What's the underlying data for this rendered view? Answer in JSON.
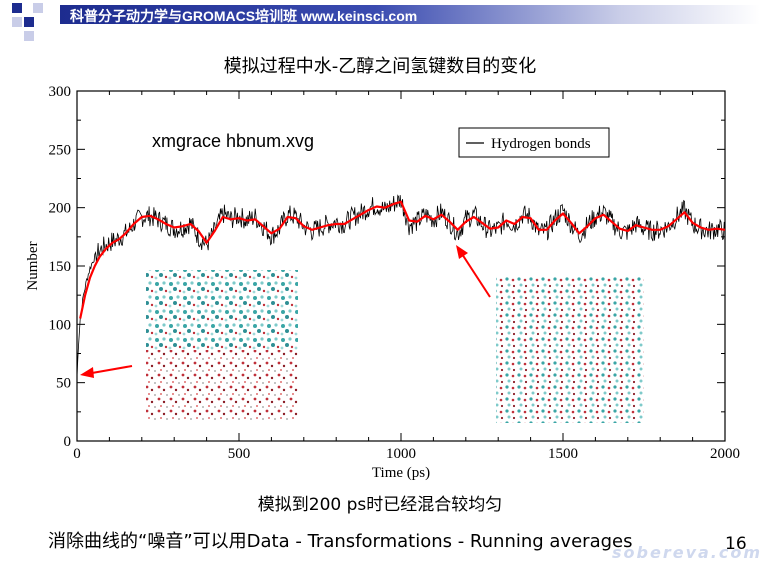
{
  "header": {
    "text": "科普分子动力学与GROMACS培训班 www.keinsci.com",
    "colors": {
      "dark": "#1d2c8f",
      "light": "#c9cde8"
    }
  },
  "slide": {
    "title": "模拟过程中水-乙醇之间氢键数目的变化",
    "command_label": "xmgrace hbnum.xvg",
    "footer_line1": "模拟到200 ps时已经混合较均匀",
    "footer_line2": "消除曲线的“噪音”可以用Data - Transformations - Running averages",
    "slide_number": "16",
    "watermark": "sobereva.com"
  },
  "images": {
    "left_snapshot": "molecular-snapshot-initial",
    "right_snapshot": "molecular-snapshot-mixed"
  },
  "arrows": {
    "color": "#ff0000"
  },
  "chart_data": {
    "type": "line",
    "xlabel": "Time (ps)",
    "ylabel": "Number",
    "xlim": [
      0,
      2000
    ],
    "ylim": [
      0,
      300
    ],
    "xticks": [
      "0",
      "500",
      "1000",
      "1500",
      "2000"
    ],
    "yticks": [
      "0",
      "50",
      "100",
      "150",
      "200",
      "250",
      "300"
    ],
    "legend": {
      "placement": "top-right",
      "entries": [
        "Hydrogen bonds"
      ]
    },
    "grid": false,
    "series": [
      {
        "name": "Hydrogen bonds",
        "color": "#000000",
        "x": [
          0,
          5,
          10,
          20,
          30,
          40,
          50,
          60,
          80,
          100,
          120,
          140,
          160,
          180,
          200,
          225,
          250,
          275,
          300,
          325,
          350,
          375,
          400,
          425,
          450,
          475,
          500,
          525,
          550,
          575,
          600,
          625,
          650,
          675,
          700,
          725,
          750,
          775,
          800,
          825,
          850,
          875,
          900,
          925,
          950,
          975,
          1000,
          1025,
          1050,
          1075,
          1100,
          1125,
          1150,
          1175,
          1200,
          1225,
          1250,
          1275,
          1300,
          1325,
          1350,
          1375,
          1400,
          1425,
          1450,
          1475,
          1500,
          1525,
          1550,
          1575,
          1600,
          1625,
          1650,
          1675,
          1700,
          1725,
          1750,
          1775,
          1800,
          1825,
          1850,
          1875,
          1900,
          1925,
          1950,
          1975,
          2000
        ],
        "values": [
          55,
          85,
          105,
          125,
          138,
          148,
          155,
          160,
          166,
          170,
          172,
          176,
          180,
          188,
          192,
          193,
          190,
          186,
          182,
          183,
          187,
          175,
          168,
          180,
          195,
          190,
          193,
          189,
          192,
          184,
          176,
          182,
          194,
          192,
          184,
          180,
          183,
          186,
          188,
          186,
          192,
          195,
          200,
          202,
          198,
          203,
          207,
          185,
          188,
          194,
          190,
          196,
          188,
          178,
          190,
          194,
          186,
          180,
          182,
          190,
          185,
          194,
          192,
          179,
          180,
          190,
          198,
          186,
          176,
          185,
          192,
          196,
          188,
          180,
          179,
          186,
          182,
          180,
          181,
          184,
          192,
          198,
          186,
          182,
          180,
          182,
          180
        ]
      },
      {
        "name": "",
        "color": "#ff0000",
        "x": [
          10,
          25,
          40,
          55,
          70,
          90,
          110,
          130,
          150,
          175,
          200,
          225,
          250,
          275,
          300,
          325,
          350,
          375,
          400,
          425,
          450,
          475,
          500,
          525,
          550,
          575,
          600,
          625,
          650,
          675,
          700,
          725,
          750,
          775,
          800,
          825,
          850,
          875,
          900,
          925,
          950,
          975,
          1000,
          1025,
          1050,
          1075,
          1100,
          1125,
          1150,
          1175,
          1200,
          1225,
          1250,
          1275,
          1300,
          1325,
          1350,
          1375,
          1400,
          1425,
          1450,
          1475,
          1500,
          1525,
          1550,
          1575,
          1600,
          1625,
          1650,
          1675,
          1700,
          1725,
          1750,
          1775,
          1800,
          1825,
          1850,
          1875,
          1900,
          1925,
          1950,
          1975,
          2000
        ],
        "values": [
          105,
          125,
          140,
          150,
          158,
          165,
          170,
          173,
          178,
          186,
          192,
          193,
          190,
          186,
          183,
          184,
          186,
          180,
          170,
          180,
          192,
          190,
          191,
          189,
          190,
          184,
          178,
          182,
          192,
          191,
          184,
          181,
          183,
          185,
          186,
          186,
          190,
          194,
          198,
          201,
          200,
          203,
          205,
          189,
          188,
          193,
          190,
          194,
          188,
          181,
          188,
          192,
          187,
          182,
          183,
          189,
          186,
          192,
          191,
          181,
          181,
          189,
          195,
          187,
          178,
          184,
          191,
          194,
          188,
          182,
          180,
          185,
          183,
          181,
          181,
          184,
          190,
          196,
          187,
          183,
          181,
          182,
          181
        ]
      }
    ]
  }
}
